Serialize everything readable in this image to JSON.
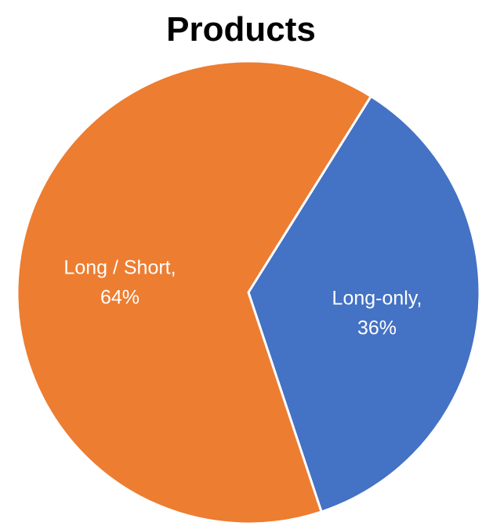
{
  "chart_data": {
    "type": "pie",
    "title": "Products",
    "slices": [
      {
        "label": "Long-only",
        "value": 36,
        "value_label": "36%",
        "color": "#4472C4"
      },
      {
        "label": "Long / Short",
        "value": 64,
        "value_label": "64%",
        "color": "#ED7D31"
      }
    ],
    "data_labels": [
      "Long-only,",
      "36%",
      "Long / Short,",
      "64%"
    ],
    "start_angle_deg": 32,
    "direction": "clockwise",
    "legend": "none",
    "grid": false
  }
}
